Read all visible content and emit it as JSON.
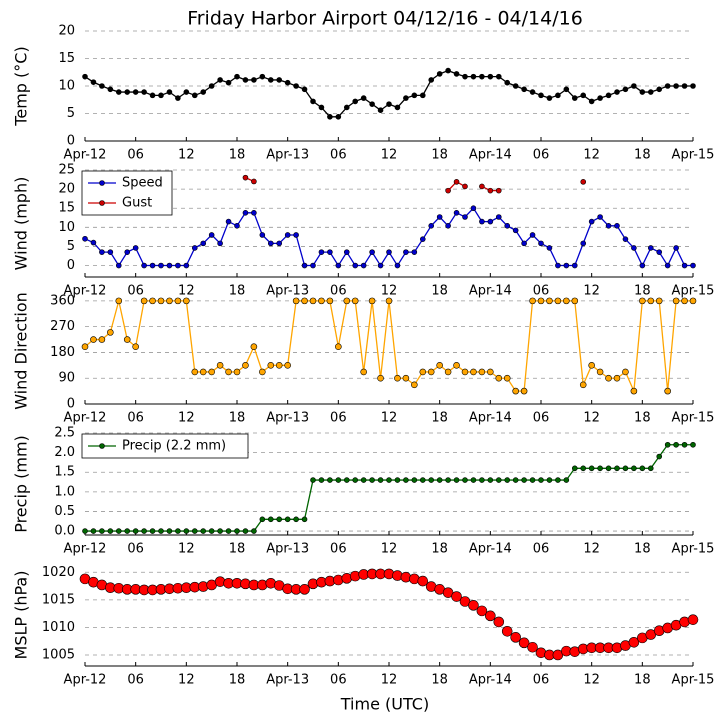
{
  "chart_data": [
    {
      "type": "line",
      "title": "Friday Harbor Airport 04/12/16 - 04/14/16",
      "ylabel": "Temp (°C)",
      "color": "#000000",
      "x": [
        0,
        1,
        2,
        3,
        4,
        5,
        6,
        7,
        8,
        9,
        10,
        11,
        12,
        13,
        14,
        15,
        16,
        17,
        18,
        19,
        20,
        21,
        22,
        23,
        24,
        25,
        26,
        27,
        28,
        29,
        30,
        31,
        32,
        33,
        34,
        35,
        36,
        37,
        38,
        39,
        40,
        41,
        42,
        43,
        44,
        45,
        46,
        47,
        48,
        49,
        50,
        51,
        52,
        53,
        54,
        55,
        56,
        57,
        58,
        59,
        60,
        61,
        62,
        63,
        64,
        65,
        66,
        67,
        68,
        69,
        70,
        71,
        72
      ],
      "values": [
        11.7,
        10.7,
        10,
        9.4,
        8.9,
        8.9,
        8.9,
        8.9,
        8.3,
        8.3,
        8.9,
        7.8,
        8.9,
        8.3,
        8.9,
        10,
        11.1,
        10.6,
        11.7,
        11.1,
        11.1,
        11.7,
        11.1,
        11.1,
        10.6,
        10,
        9.4,
        7.2,
        6.1,
        4.4,
        4.4,
        6.1,
        7.2,
        7.8,
        6.7,
        5.6,
        6.7,
        6.1,
        7.8,
        8.3,
        8.3,
        11.1,
        12.2,
        12.8,
        12.2,
        11.7,
        11.7,
        11.7,
        11.7,
        11.7,
        10.6,
        10,
        9.4,
        8.9,
        8.3,
        7.8,
        8.3,
        9.4,
        7.8,
        8.3,
        7.2,
        7.8,
        8.3,
        8.9,
        9.4,
        10,
        8.9,
        8.9,
        9.4,
        10,
        10,
        10,
        10
      ],
      "xlim": [
        0,
        72
      ],
      "xticks": [
        {
          "value": 0,
          "label": "Apr-12"
        },
        {
          "value": 6,
          "label": "06"
        },
        {
          "value": 12,
          "label": "12"
        },
        {
          "value": 18,
          "label": "18"
        },
        {
          "value": 24,
          "label": "Apr-13"
        },
        {
          "value": 30,
          "label": "06"
        },
        {
          "value": 36,
          "label": "12"
        },
        {
          "value": 42,
          "label": "18"
        },
        {
          "value": 48,
          "label": "Apr-14"
        },
        {
          "value": 54,
          "label": "06"
        },
        {
          "value": 60,
          "label": "12"
        },
        {
          "value": 66,
          "label": "18"
        },
        {
          "value": 72,
          "label": "Apr-15"
        }
      ],
      "ylim": [
        0,
        20
      ],
      "yticks": [
        0,
        5,
        10,
        15,
        20
      ],
      "grid": true
    },
    {
      "type": "line",
      "ylabel": "Wind (mph)",
      "legend": "upper left",
      "x": [
        0,
        1,
        2,
        3,
        4,
        5,
        6,
        7,
        8,
        9,
        10,
        11,
        12,
        13,
        14,
        15,
        16,
        17,
        18,
        19,
        20,
        21,
        22,
        23,
        24,
        25,
        26,
        27,
        28,
        29,
        30,
        31,
        32,
        33,
        34,
        35,
        36,
        37,
        38,
        39,
        40,
        41,
        42,
        43,
        44,
        45,
        46,
        47,
        48,
        49,
        50,
        51,
        52,
        53,
        54,
        55,
        56,
        57,
        58,
        59,
        60,
        61,
        62,
        63,
        64,
        65,
        66,
        67,
        68,
        69,
        70,
        71,
        72
      ],
      "series": [
        {
          "name": "Speed",
          "color": "#0000cc",
          "values": [
            7,
            6,
            3.5,
            3.5,
            0,
            3.5,
            4.6,
            0,
            0,
            0,
            0,
            0,
            0,
            4.6,
            5.8,
            8,
            5.8,
            11.5,
            10.4,
            13.8,
            13.8,
            8,
            5.8,
            5.8,
            8,
            8,
            0,
            0,
            3.5,
            3.5,
            0,
            3.5,
            0,
            0,
            3.5,
            0,
            3.5,
            0,
            3.5,
            3.5,
            6.9,
            10.4,
            12.7,
            10.4,
            13.8,
            12.7,
            15,
            11.5,
            11.5,
            12.7,
            10.4,
            9.2,
            5.8,
            8,
            5.8,
            4.6,
            0,
            0,
            0,
            5.8,
            11.5,
            12.7,
            10.4,
            10.4,
            6.9,
            4.6,
            0,
            4.6,
            3.5,
            0,
            4.6,
            0,
            0
          ]
        },
        {
          "name": "Gust",
          "color": "#cc0000",
          "values": [
            null,
            null,
            null,
            null,
            null,
            null,
            null,
            null,
            null,
            null,
            null,
            null,
            null,
            null,
            null,
            null,
            null,
            null,
            null,
            23,
            22,
            null,
            null,
            null,
            null,
            null,
            null,
            null,
            null,
            null,
            null,
            null,
            null,
            null,
            null,
            null,
            null,
            null,
            null,
            null,
            null,
            null,
            null,
            19.6,
            21.9,
            20.7,
            null,
            20.7,
            19.6,
            19.6,
            null,
            null,
            null,
            null,
            null,
            null,
            null,
            null,
            null,
            21.9,
            null,
            null,
            null,
            null,
            null,
            null,
            null,
            null,
            null,
            null,
            null,
            null,
            null
          ]
        }
      ],
      "xlim": [
        0,
        72
      ],
      "xticks": [
        {
          "value": 0,
          "label": "Apr-12"
        },
        {
          "value": 6,
          "label": "06"
        },
        {
          "value": 12,
          "label": "12"
        },
        {
          "value": 18,
          "label": "18"
        },
        {
          "value": 24,
          "label": "Apr-13"
        },
        {
          "value": 30,
          "label": "06"
        },
        {
          "value": 36,
          "label": "12"
        },
        {
          "value": 42,
          "label": "18"
        },
        {
          "value": 48,
          "label": "Apr-14"
        },
        {
          "value": 54,
          "label": "06"
        },
        {
          "value": 60,
          "label": "12"
        },
        {
          "value": 66,
          "label": "18"
        },
        {
          "value": 72,
          "label": "Apr-15"
        }
      ],
      "ylim": [
        -3,
        25
      ],
      "yticks": [
        0,
        5,
        10,
        15,
        20,
        25
      ],
      "grid": true
    },
    {
      "type": "line",
      "ylabel": "Wind Direction",
      "color": "#ffa500",
      "x": [
        0,
        1,
        2,
        3,
        4,
        5,
        6,
        7,
        8,
        9,
        10,
        11,
        12,
        13,
        14,
        15,
        16,
        17,
        18,
        19,
        20,
        21,
        22,
        23,
        24,
        25,
        26,
        27,
        28,
        29,
        30,
        31,
        32,
        33,
        34,
        35,
        36,
        37,
        38,
        39,
        40,
        41,
        42,
        43,
        44,
        45,
        46,
        47,
        48,
        49,
        50,
        51,
        52,
        53,
        54,
        55,
        56,
        57,
        58,
        59,
        60,
        61,
        62,
        63,
        64,
        65,
        66,
        67,
        68,
        69,
        70,
        71,
        72
      ],
      "values": [
        200,
        225,
        225,
        250,
        360,
        225,
        200,
        360,
        360,
        360,
        360,
        360,
        360,
        112,
        112,
        112,
        135,
        112,
        112,
        135,
        200,
        112,
        135,
        135,
        135,
        360,
        360,
        360,
        360,
        360,
        200,
        360,
        360,
        112,
        360,
        90,
        360,
        90,
        90,
        67,
        112,
        112,
        135,
        112,
        135,
        112,
        112,
        112,
        112,
        90,
        90,
        45,
        45,
        360,
        360,
        360,
        360,
        360,
        360,
        67,
        135,
        112,
        90,
        90,
        112,
        45,
        360,
        360,
        360,
        45,
        360,
        360,
        360
      ],
      "xlim": [
        0,
        72
      ],
      "xticks": [
        {
          "value": 0,
          "label": "Apr-12"
        },
        {
          "value": 6,
          "label": "06"
        },
        {
          "value": 12,
          "label": "12"
        },
        {
          "value": 18,
          "label": "18"
        },
        {
          "value": 24,
          "label": "Apr-13"
        },
        {
          "value": 30,
          "label": "06"
        },
        {
          "value": 36,
          "label": "12"
        },
        {
          "value": 42,
          "label": "18"
        },
        {
          "value": 48,
          "label": "Apr-14"
        },
        {
          "value": 54,
          "label": "06"
        },
        {
          "value": 60,
          "label": "12"
        },
        {
          "value": 66,
          "label": "18"
        },
        {
          "value": 72,
          "label": "Apr-15"
        }
      ],
      "ylim": [
        0,
        370
      ],
      "yticks": [
        0,
        90,
        180,
        270,
        360
      ],
      "grid": true
    },
    {
      "type": "line",
      "ylabel": "Precip (mm)",
      "legend": "upper left",
      "x": [
        0,
        1,
        2,
        3,
        4,
        5,
        6,
        7,
        8,
        9,
        10,
        11,
        12,
        13,
        14,
        15,
        16,
        17,
        18,
        19,
        20,
        21,
        22,
        23,
        24,
        25,
        26,
        27,
        28,
        29,
        30,
        31,
        32,
        33,
        34,
        35,
        36,
        37,
        38,
        39,
        40,
        41,
        42,
        43,
        44,
        45,
        46,
        47,
        48,
        49,
        50,
        51,
        52,
        53,
        54,
        55,
        56,
        57,
        58,
        59,
        60,
        61,
        62,
        63,
        64,
        65,
        66,
        67,
        68,
        69,
        70,
        71,
        72
      ],
      "series": [
        {
          "name": "Precip (2.2 mm)",
          "color": "#006400",
          "values": [
            0,
            0,
            0,
            0,
            0,
            0,
            0,
            0,
            0,
            0,
            0,
            0,
            0,
            0,
            0,
            0,
            0,
            0,
            0,
            0,
            0,
            0.3,
            0.3,
            0.3,
            0.3,
            0.3,
            0.3,
            1.3,
            1.3,
            1.3,
            1.3,
            1.3,
            1.3,
            1.3,
            1.3,
            1.3,
            1.3,
            1.3,
            1.3,
            1.3,
            1.3,
            1.3,
            1.3,
            1.3,
            1.3,
            1.3,
            1.3,
            1.3,
            1.3,
            1.3,
            1.3,
            1.3,
            1.3,
            1.3,
            1.3,
            1.3,
            1.3,
            1.3,
            1.6,
            1.6,
            1.6,
            1.6,
            1.6,
            1.6,
            1.6,
            1.6,
            1.6,
            1.6,
            1.9,
            2.2,
            2.2,
            2.2,
            2.2
          ]
        }
      ],
      "xlim": [
        0,
        72
      ],
      "xticks": [
        {
          "value": 0,
          "label": "Apr-12"
        },
        {
          "value": 6,
          "label": "06"
        },
        {
          "value": 12,
          "label": "12"
        },
        {
          "value": 18,
          "label": "18"
        },
        {
          "value": 24,
          "label": "Apr-13"
        },
        {
          "value": 30,
          "label": "06"
        },
        {
          "value": 36,
          "label": "12"
        },
        {
          "value": 42,
          "label": "18"
        },
        {
          "value": 48,
          "label": "Apr-14"
        },
        {
          "value": 54,
          "label": "06"
        },
        {
          "value": 60,
          "label": "12"
        },
        {
          "value": 66,
          "label": "18"
        },
        {
          "value": 72,
          "label": "Apr-15"
        }
      ],
      "ylim": [
        -0.1,
        2.5
      ],
      "yticks": [
        {
          "value": 0,
          "label": "0.0"
        },
        0.5,
        {
          "value": 1,
          "label": "1.0"
        },
        1.5,
        {
          "value": 2,
          "label": "2.0"
        },
        2.5
      ],
      "grid": true
    },
    {
      "type": "scatter",
      "ylabel": "MSLP (hPa)",
      "xlabel": "Time (UTC)",
      "color": "#ff0000",
      "x": [
        0,
        1,
        2,
        3,
        4,
        5,
        6,
        7,
        8,
        9,
        10,
        11,
        12,
        13,
        14,
        15,
        16,
        17,
        18,
        19,
        20,
        21,
        22,
        23,
        24,
        25,
        26,
        27,
        28,
        29,
        30,
        31,
        32,
        33,
        34,
        35,
        36,
        37,
        38,
        39,
        40,
        41,
        42,
        43,
        44,
        45,
        46,
        47,
        48,
        49,
        50,
        51,
        52,
        53,
        54,
        55,
        56,
        57,
        58,
        59,
        60,
        61,
        62,
        63,
        64,
        65,
        66,
        67,
        68,
        69,
        70,
        71,
        72
      ],
      "values": [
        1018.8,
        1018.2,
        1017.7,
        1017.2,
        1017.1,
        1016.9,
        1016.9,
        1016.8,
        1016.8,
        1016.9,
        1017,
        1017.1,
        1017.2,
        1017.3,
        1017.4,
        1017.7,
        1018.3,
        1018,
        1018,
        1017.9,
        1017.7,
        1017.7,
        1018,
        1017.6,
        1017,
        1016.9,
        1016.9,
        1017.9,
        1018.2,
        1018.4,
        1018.6,
        1018.9,
        1019.3,
        1019.6,
        1019.7,
        1019.7,
        1019.7,
        1019.4,
        1019.1,
        1018.8,
        1018.4,
        1017.4,
        1016.9,
        1016.3,
        1015.6,
        1014.7,
        1014,
        1013,
        1012.1,
        1011,
        1009.3,
        1008.2,
        1007.2,
        1006.4,
        1005.4,
        1005,
        1005,
        1005.7,
        1005.6,
        1006.1,
        1006.3,
        1006.3,
        1006.3,
        1006.3,
        1006.7,
        1007.3,
        1008.1,
        1008.7,
        1009.4,
        1009.9,
        1010.4,
        1011,
        1011.4
      ],
      "xlim": [
        0,
        72
      ],
      "xticks": [
        {
          "value": 0,
          "label": "Apr-12"
        },
        {
          "value": 6,
          "label": "06"
        },
        {
          "value": 12,
          "label": "12"
        },
        {
          "value": 18,
          "label": "18"
        },
        {
          "value": 24,
          "label": "Apr-13"
        },
        {
          "value": 30,
          "label": "06"
        },
        {
          "value": 36,
          "label": "12"
        },
        {
          "value": 42,
          "label": "18"
        },
        {
          "value": 48,
          "label": "Apr-14"
        },
        {
          "value": 54,
          "label": "06"
        },
        {
          "value": 60,
          "label": "12"
        },
        {
          "value": 66,
          "label": "18"
        },
        {
          "value": 72,
          "label": "Apr-15"
        }
      ],
      "ylim": [
        1003,
        1021.5
      ],
      "yticks": [
        1005,
        1010,
        1015,
        1020
      ],
      "grid": true
    }
  ]
}
